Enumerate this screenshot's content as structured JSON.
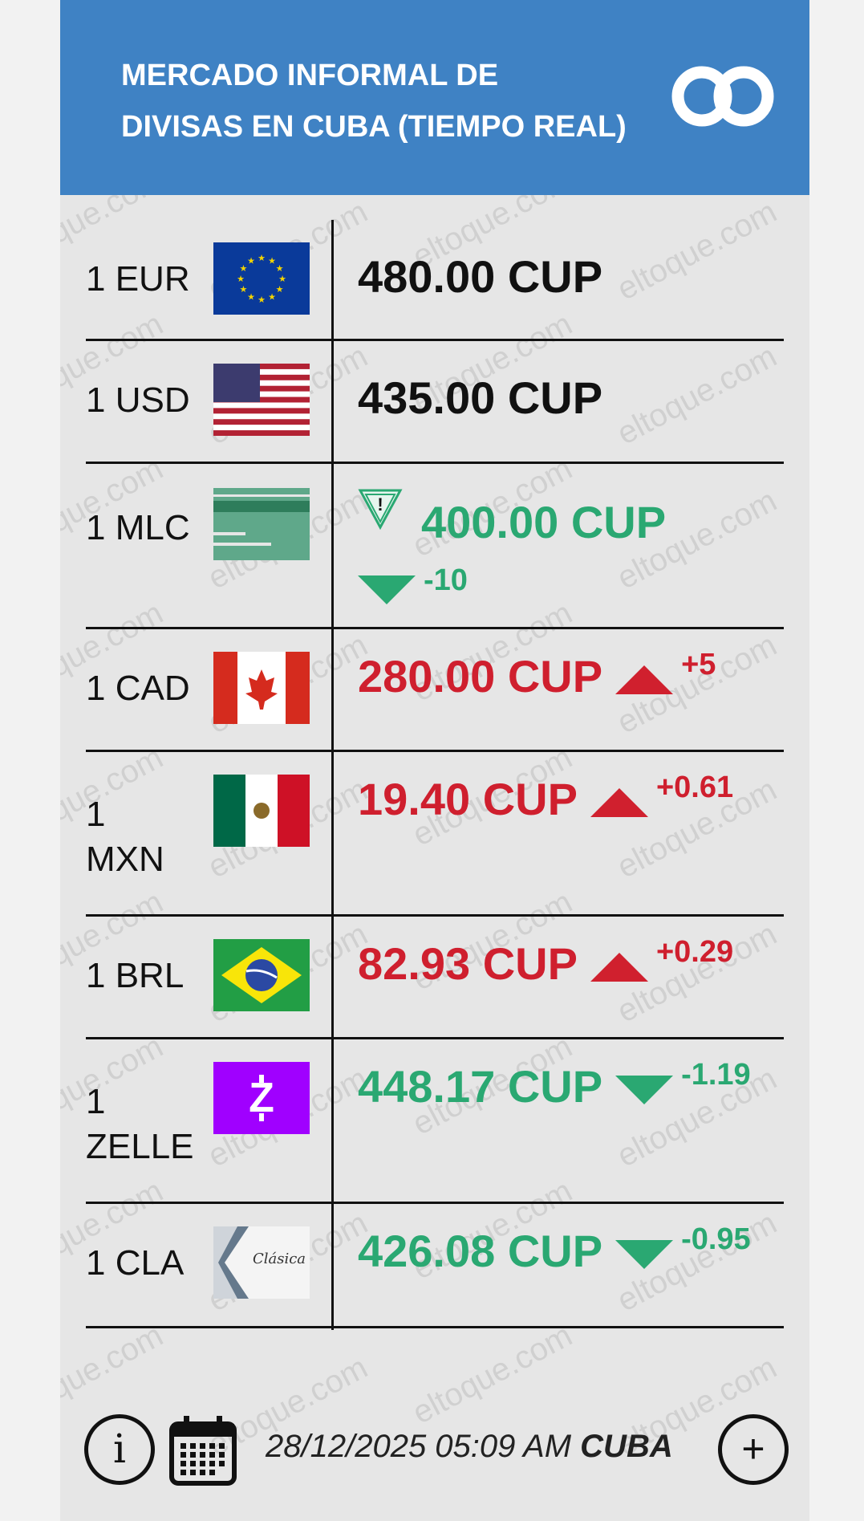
{
  "header": {
    "title_line1": "MERCADO INFORMAL DE",
    "title_line2": "DIVISAS EN CUBA (TIEMPO REAL)",
    "logo": "eltoque-logo"
  },
  "watermark": "eltoque.com",
  "colors": {
    "header": "#3f82c4",
    "up": "#cf1f2e",
    "down": "#2aa872",
    "neutral": "#111111"
  },
  "rates": [
    {
      "label": "1 EUR",
      "flag": "eu-flag",
      "price": "480.00 CUP",
      "trend": "none",
      "change": ""
    },
    {
      "label": "1 USD",
      "flag": "us-flag",
      "price": "435.00 CUP",
      "trend": "none",
      "change": ""
    },
    {
      "label": "1 MLC",
      "flag": "mlc-card",
      "price": "400.00 CUP",
      "trend": "down",
      "change": "-10",
      "warning": true
    },
    {
      "label": "1 CAD",
      "flag": "canada-flag",
      "price": "280.00 CUP",
      "trend": "up",
      "change": "+5"
    },
    {
      "label": "1 MXN",
      "flag": "mexico-flag",
      "price": "19.40 CUP",
      "trend": "up",
      "change": "+0.61"
    },
    {
      "label": "1 BRL",
      "flag": "brazil-flag",
      "price": "82.93 CUP",
      "trend": "up",
      "change": "+0.29"
    },
    {
      "label": "1 ZELLE",
      "flag": "zelle-logo",
      "price": "448.17 CUP",
      "trend": "down",
      "change": "-1.19"
    },
    {
      "label": "1 CLA",
      "flag": "clasica-card",
      "price": "426.08 CUP",
      "trend": "down",
      "change": "-0.95",
      "flag_text": "Clásica"
    }
  ],
  "footer": {
    "date": "28/12/2025 05:09 AM",
    "region": "CUBA",
    "info_icon": "info-icon",
    "calendar_icon": "calendar-icon",
    "add_icon": "plus-icon"
  }
}
